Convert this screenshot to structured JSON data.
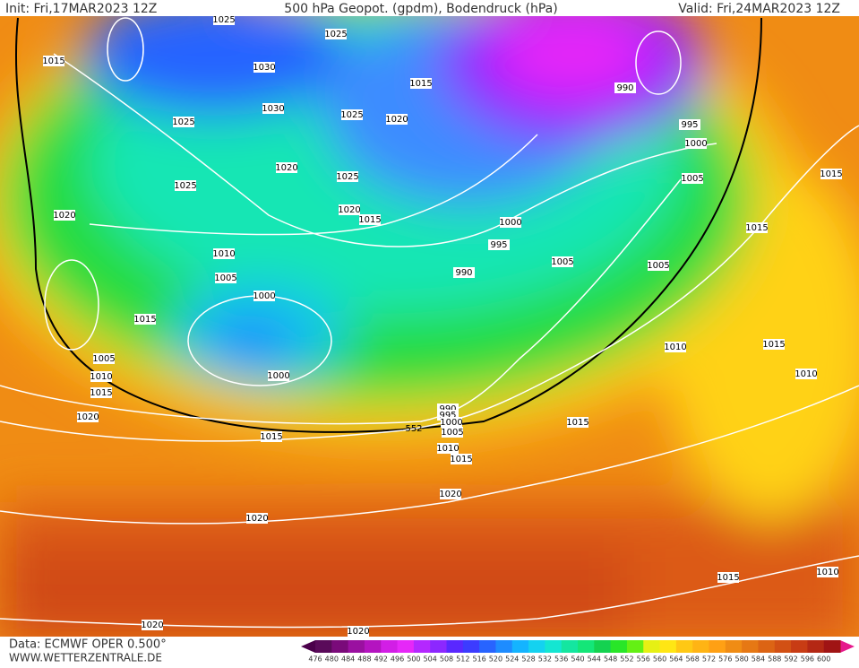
{
  "header": {
    "init": "Init: Fri,17MAR2023 12Z",
    "title": "500 hPa Geopot. (gpdm), Bodendruck (hPa)",
    "valid": "Valid: Fri,24MAR2023 12Z"
  },
  "footer": {
    "source": "Data: ECMWF OPER 0.500°",
    "site": "WWW.WETTERZENTRALE.DE"
  },
  "contour_label": "552",
  "isobar_labels": [
    "1015",
    "1025",
    "1025",
    "1030",
    "1015",
    "990",
    "1030",
    "1025",
    "1025",
    "1020",
    "995",
    "1000",
    "1020",
    "1025",
    "1025",
    "1005",
    "1015",
    "1020",
    "1015",
    "1020",
    "1000",
    "1015",
    "995",
    "1010",
    "1005",
    "1005",
    "990",
    "1005",
    "1000",
    "1015",
    "1010",
    "1015",
    "1005",
    "1000",
    "1010",
    "1010",
    "1015",
    "990",
    "995",
    "1000",
    "1020",
    "1015",
    "1005",
    "1015",
    "1010",
    "1015",
    "1020",
    "1020",
    "1015",
    "1010",
    "1020",
    "1020"
  ],
  "colorbar": {
    "labels": [
      476,
      480,
      484,
      488,
      492,
      496,
      500,
      504,
      508,
      512,
      516,
      520,
      524,
      528,
      532,
      536,
      540,
      544,
      548,
      552,
      556,
      560,
      564,
      568,
      572,
      576,
      580,
      584,
      588,
      592,
      596,
      600
    ],
    "colors": [
      "#5a0a5a",
      "#7a0a7a",
      "#9a10a0",
      "#b414c0",
      "#d21ee6",
      "#e628f8",
      "#b428ff",
      "#8c28ff",
      "#5a28ff",
      "#3c3cff",
      "#2864ff",
      "#1e8cff",
      "#14b4ff",
      "#14d2f0",
      "#14e6d2",
      "#14e6a0",
      "#14e678",
      "#14d250",
      "#28e628",
      "#64f014",
      "#e6f014",
      "#ffe614",
      "#ffc814",
      "#ffb414",
      "#ffa014",
      "#f08c14",
      "#e67814",
      "#dc6414",
      "#d25014",
      "#c83c14",
      "#b42814",
      "#a01414"
    ]
  }
}
